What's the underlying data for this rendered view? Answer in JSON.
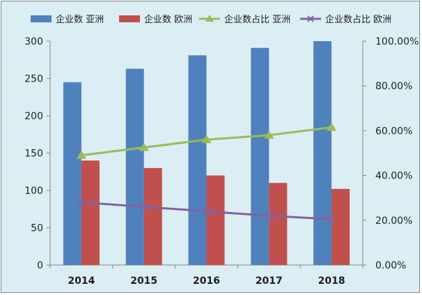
{
  "chart_data": {
    "type": "bar+line",
    "categories": [
      "2014",
      "2015",
      "2016",
      "2017",
      "2018"
    ],
    "bar_series": [
      {
        "name": "企业数 亚洲",
        "color": "#4f81bd",
        "values": [
          245,
          263,
          281,
          291,
          300
        ]
      },
      {
        "name": "企业数 欧洲",
        "color": "#c0504d",
        "values": [
          140,
          130,
          120,
          110,
          102
        ]
      }
    ],
    "line_series": [
      {
        "name": "企业数占比 亚洲",
        "color": "#9bbb59",
        "marker": "triangle",
        "axis": "right",
        "values": [
          0.49,
          0.525,
          0.56,
          0.58,
          0.615
        ]
      },
      {
        "name": "企业数占比 欧洲",
        "color": "#8064a2",
        "marker": "x",
        "axis": "right",
        "values": [
          0.28,
          0.26,
          0.24,
          0.22,
          0.205
        ]
      }
    ],
    "y_left": {
      "min": 0,
      "max": 300,
      "ticks": [
        "0",
        "50",
        "100",
        "150",
        "200",
        "250",
        "300"
      ]
    },
    "y_right": {
      "min": 0,
      "max": 1,
      "ticks": [
        "0.00%",
        "20.00%",
        "40.00%",
        "60.00%",
        "80.00%",
        "100.00%"
      ]
    },
    "legend_position": "top",
    "grid": false
  }
}
